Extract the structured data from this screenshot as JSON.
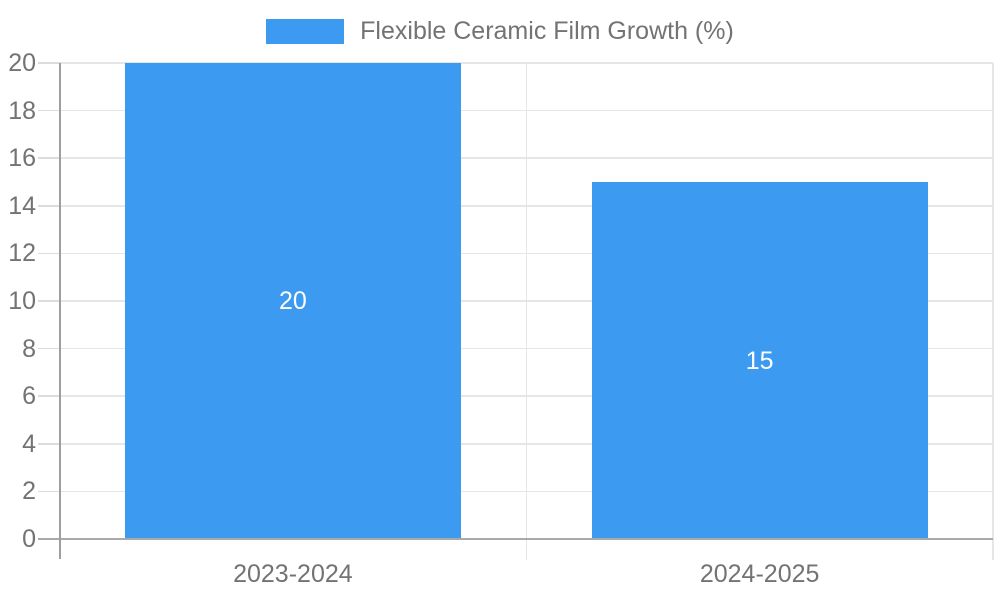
{
  "legend": {
    "label": "Flexible Ceramic Film Growth (%)"
  },
  "chart_data": {
    "type": "bar",
    "title": "Flexible Ceramic Film Growth (%)",
    "categories": [
      "2023-2024",
      "2024-2025"
    ],
    "values": [
      20,
      15
    ],
    "bar_labels": [
      "20",
      "15"
    ],
    "xlabel": "",
    "ylabel": "",
    "ylim": [
      0,
      20
    ],
    "ytick_step": 2,
    "yticks": [
      0,
      2,
      4,
      6,
      8,
      10,
      12,
      14,
      16,
      18,
      20
    ],
    "legend_position": "top-center",
    "grid": true,
    "colors": {
      "bar": "#3C9AF0",
      "axis_text": "#737373",
      "bar_label_text": "#FFFFFF",
      "gridline": "#E6E6E6",
      "tick": "#DCDCDC",
      "axis_line": "#9E9E9E",
      "baseline": "#A9A9A9",
      "background": "#FFFFFF"
    }
  }
}
